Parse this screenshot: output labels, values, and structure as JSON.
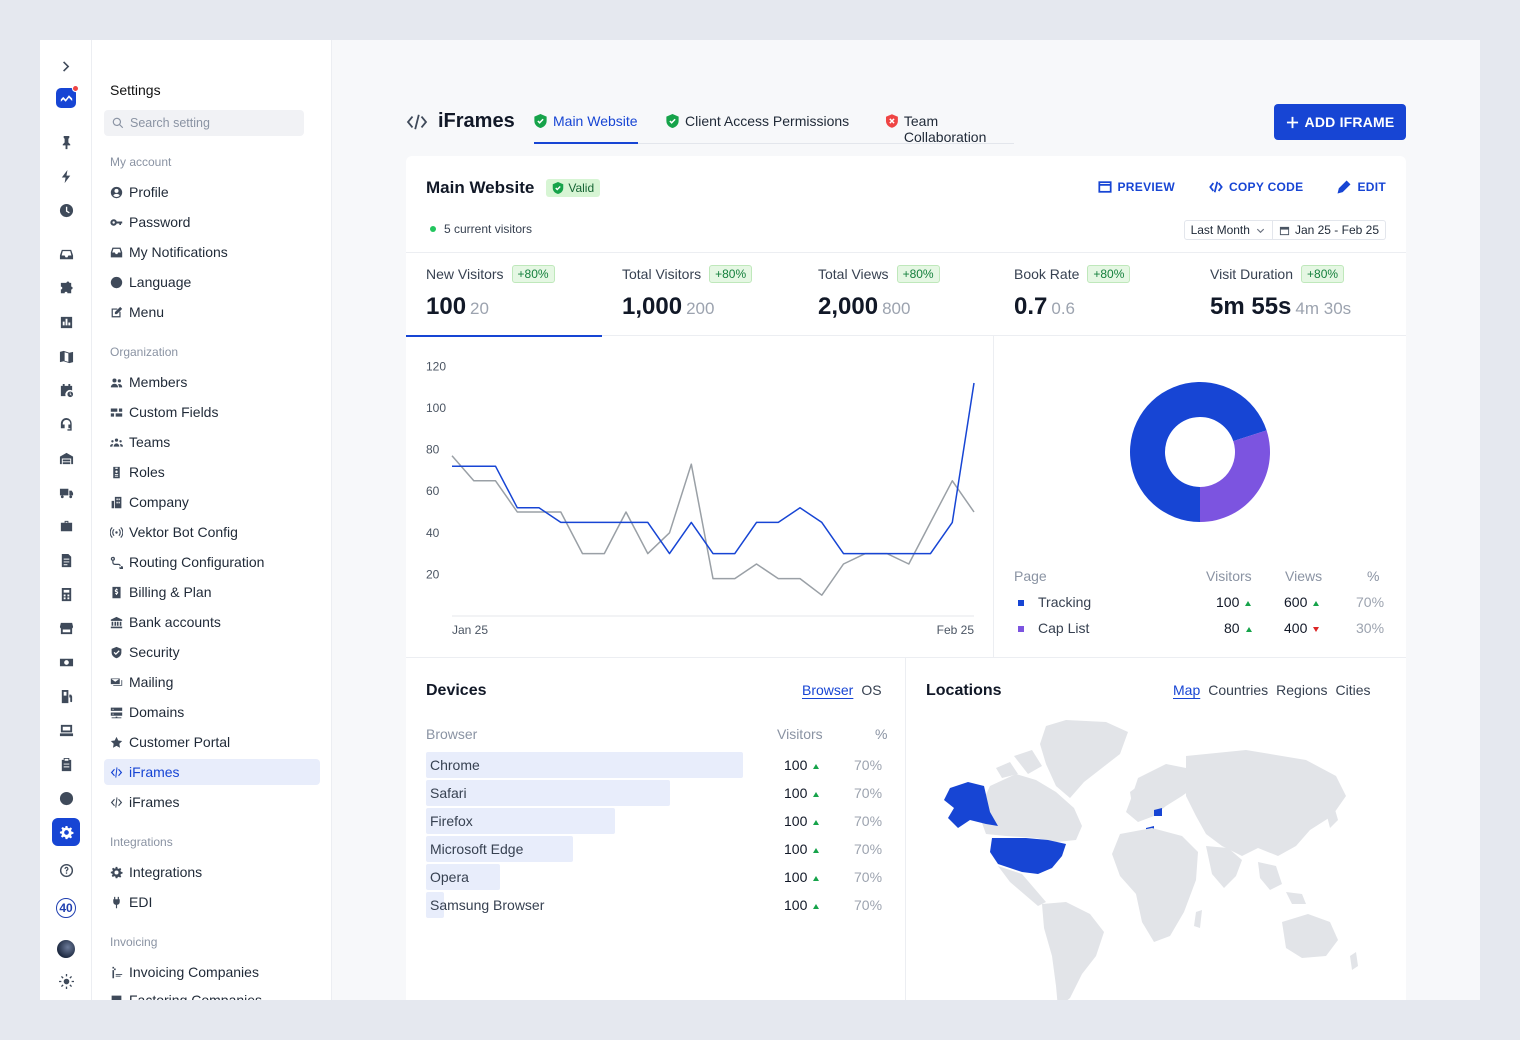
{
  "rail": {
    "rail_count": "40"
  },
  "sidebar": {
    "title": "Settings",
    "search_placeholder": "Search setting",
    "groups": {
      "my_account": "My account",
      "organization": "Organization",
      "integrations": "Integrations",
      "invoicing": "Invoicing"
    },
    "items": {
      "profile": "Profile",
      "password": "Password",
      "notifications": "My Notifications",
      "language": "Language",
      "menu": "Menu",
      "members": "Members",
      "custom_fields": "Custom Fields",
      "teams": "Teams",
      "roles": "Roles",
      "company": "Company",
      "vektor": "Vektor Bot Config",
      "routing": "Routing Configuration",
      "billing": "Billing & Plan",
      "bank": "Bank accounts",
      "security": "Security",
      "mailing": "Mailing",
      "domains": "Domains",
      "portal": "Customer Portal",
      "iframes_active": "iFrames",
      "iframes": "iFrames",
      "integrations": "Integrations",
      "edi": "EDI",
      "invoicing_companies": "Invoicing Companies",
      "factoring": "Factoring Companies"
    }
  },
  "header": {
    "title": "iFrames",
    "tabs": [
      "Main Website",
      "Client Access Permissions",
      "Team Collaboration"
    ],
    "add_button": "ADD IFRAME",
    "colors": {
      "accent": "#1745d4",
      "ok": "#16a34a",
      "warn": "#ef4444"
    }
  },
  "card": {
    "title": "Main Website",
    "status": "Valid",
    "actions": {
      "preview": "PREVIEW",
      "copy": "COPY CODE",
      "edit": "EDIT"
    },
    "visitors": "5 current visitors",
    "range_select": "Last Month",
    "date_range": "Jan 25 - Feb 25"
  },
  "kpis": [
    {
      "label": "New Visitors",
      "badge": "+80%",
      "value": "100",
      "prev": "20"
    },
    {
      "label": "Total Visitors",
      "badge": "+80%",
      "value": "1,000",
      "prev": "200"
    },
    {
      "label": "Total Views",
      "badge": "+80%",
      "value": "2,000",
      "prev": "800"
    },
    {
      "label": "Book Rate",
      "badge": "+80%",
      "value": "0.7",
      "prev": "0.6"
    },
    {
      "label": "Visit Duration",
      "badge": "+80%",
      "value": "5m 55s",
      "prev": "4m 30s"
    }
  ],
  "chart_data": [
    {
      "type": "line",
      "y_ticks": [
        20,
        40,
        60,
        80,
        100,
        120
      ],
      "ylim": [
        0,
        125
      ],
      "x_labels": [
        "Jan 25",
        "Feb 25"
      ],
      "grid": false,
      "series": [
        {
          "color": "#1745d4",
          "values": [
            72,
            72,
            72,
            52,
            52,
            45,
            45,
            45,
            45,
            45,
            30,
            45,
            30,
            30,
            45,
            45,
            52,
            45,
            30,
            30,
            30,
            30,
            30,
            45,
            112
          ]
        },
        {
          "color": "#9aa0a6",
          "values": [
            77,
            65,
            65,
            50,
            50,
            50,
            30,
            30,
            50,
            30,
            40,
            73,
            18,
            18,
            25,
            18,
            18,
            10,
            25,
            30,
            30,
            25,
            45,
            65,
            50
          ]
        }
      ]
    },
    {
      "type": "pie",
      "donut": true,
      "slices": [
        {
          "label": "Tracking",
          "value": 70,
          "color": "#1745d4"
        },
        {
          "label": "Cap List",
          "value": 30,
          "color": "#7c54e0"
        }
      ]
    }
  ],
  "page_table": {
    "headers": [
      "Page",
      "Visitors",
      "Views",
      "%"
    ],
    "rows": [
      {
        "name": "Tracking",
        "visitors": "100",
        "views": "600",
        "views_trend": "up",
        "pct": "70%",
        "color": "#1745d4"
      },
      {
        "name": "Cap List",
        "visitors": "80",
        "views": "400",
        "views_trend": "down",
        "pct": "30%",
        "color": "#7c54e0"
      }
    ]
  },
  "devices": {
    "title": "Devices",
    "tabs": [
      "Browser",
      "OS"
    ],
    "headers": [
      "Browser",
      "Visitors",
      "%"
    ],
    "rows": [
      {
        "name": "Chrome",
        "visitors": "100",
        "pct": "70%",
        "share": 0.69
      },
      {
        "name": "Safari",
        "visitors": "100",
        "pct": "70%",
        "share": 0.53
      },
      {
        "name": "Firefox",
        "visitors": "100",
        "pct": "70%",
        "share": 0.41
      },
      {
        "name": "Microsoft Edge",
        "visitors": "100",
        "pct": "70%",
        "share": 0.32
      },
      {
        "name": "Opera",
        "visitors": "100",
        "pct": "70%",
        "share": 0.16
      },
      {
        "name": "Samsung Browser",
        "visitors": "100",
        "pct": "70%",
        "share": 0.04
      }
    ]
  },
  "locations": {
    "title": "Locations",
    "tabs": [
      "Map",
      "Countries",
      "Regions",
      "Cities"
    ]
  }
}
